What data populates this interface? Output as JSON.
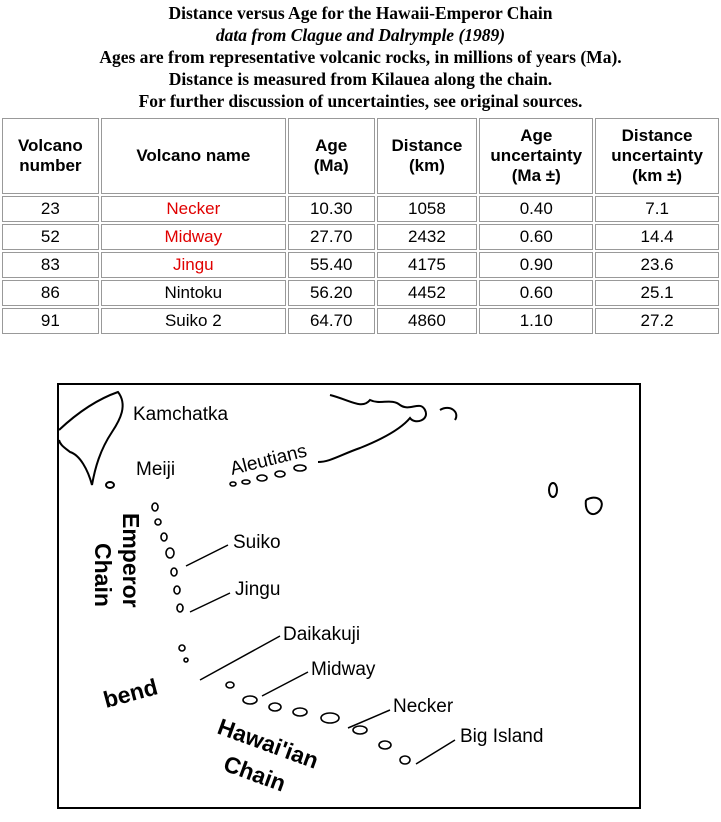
{
  "header": {
    "lines": [
      "Distance versus Age for the Hawaii-Emperor Chain",
      "data from Clague and Dalrymple (1989)",
      "Ages are from representative volcanic rocks, in millions of years (Ma).",
      "Distance is measured from Kilauea along the chain.",
      "For further discussion of uncertainties, see original sources."
    ]
  },
  "table": {
    "columns": [
      [
        "Volcano",
        "number"
      ],
      [
        "Volcano name"
      ],
      [
        "Age",
        "(Ma)"
      ],
      [
        "Distance",
        "(km)"
      ],
      [
        "Age",
        "uncertainty",
        "(Ma ±)"
      ],
      [
        "Distance",
        "uncertainty",
        "(km ±)"
      ]
    ],
    "rows": [
      [
        "23",
        "Necker",
        "10.30",
        "1058",
        "0.40",
        "7.1"
      ],
      [
        "52",
        "Midway",
        "27.70",
        "2432",
        "0.60",
        "14.4"
      ],
      [
        "83",
        "Jingu",
        "55.40",
        "4175",
        "0.90",
        "23.6"
      ],
      [
        "86",
        "Nintoku",
        "56.20",
        "4452",
        "0.60",
        "25.1"
      ],
      [
        "91",
        "Suiko 2",
        "64.70",
        "4860",
        "1.10",
        "27.2"
      ]
    ]
  },
  "map": {
    "labels": {
      "kamchatka": "Kamchatka",
      "meiji": "Meiji",
      "aleutians": "Aleutians",
      "suiko": "Suiko",
      "jingu": "Jingu",
      "daikakuji": "Daikakuji",
      "midway": "Midway",
      "necker": "Necker",
      "big_island": "Big Island",
      "bend": "bend"
    },
    "emperor_chain": [
      "Emperor",
      "Chain"
    ],
    "hawaiian_chain": [
      "Hawai'ian",
      "Chain"
    ]
  }
}
